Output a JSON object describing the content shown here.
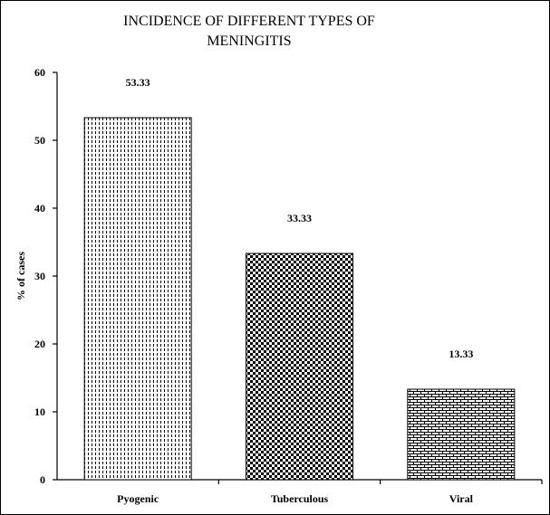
{
  "chart_data": {
    "type": "bar",
    "title_line1": "INCIDENCE OF DIFFERENT TYPES OF",
    "title_line2": "MENINGITIS",
    "ylabel": "% of cases",
    "xlabel": "",
    "categories": [
      "Pyogenic",
      "Tuberculous",
      "Viral"
    ],
    "values": [
      53.33,
      33.33,
      13.33
    ],
    "data_labels": [
      "53.33",
      "33.33",
      "13.33"
    ],
    "ylim": [
      0,
      60
    ],
    "yticks": [
      0,
      10,
      20,
      30,
      40,
      50,
      60
    ],
    "grid": false,
    "legend": "none",
    "patterns": [
      "vertical-dashes",
      "checkerboard",
      "brick"
    ],
    "colors": {
      "bar_fill": "#ffffff",
      "pattern": "#000000",
      "axis": "#000000"
    }
  }
}
